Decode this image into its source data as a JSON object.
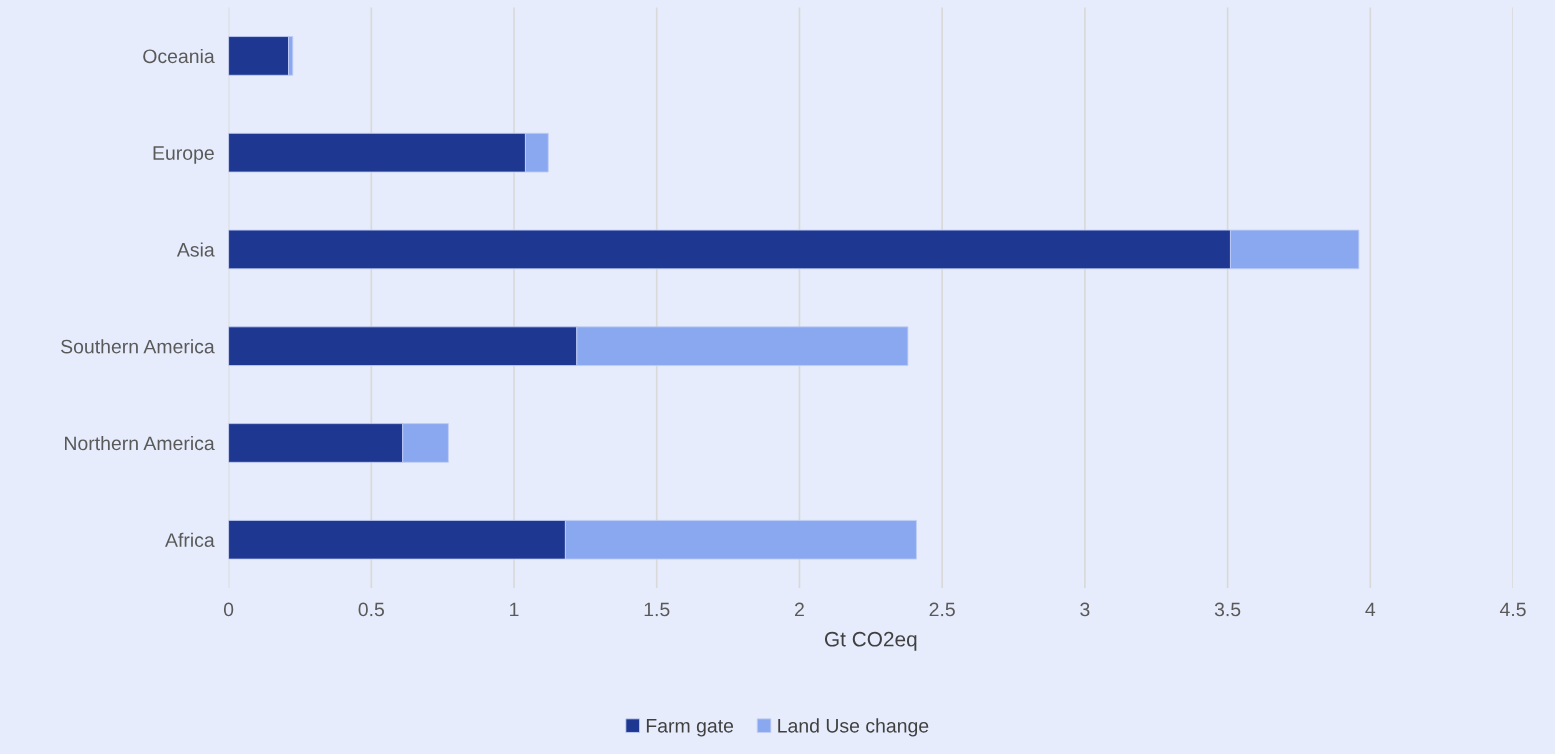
{
  "chart_data": {
    "type": "bar",
    "orientation": "horizontal",
    "stacked": true,
    "xlabel": "Gt CO2eq",
    "categories": [
      "Oceania",
      "Europe",
      "Asia",
      "Southern America",
      "Northern America",
      "Africa"
    ],
    "series": [
      {
        "name": "Farm gate",
        "color": "#1e3791",
        "values": [
          0.21,
          1.04,
          3.51,
          1.22,
          0.61,
          1.18
        ]
      },
      {
        "name": "Land Use change",
        "color": "#8aa8f0",
        "values": [
          0.015,
          0.08,
          0.45,
          1.16,
          0.16,
          1.23
        ]
      }
    ],
    "xlim": [
      0,
      4.5
    ],
    "xticks": [
      0,
      0.5,
      1,
      1.5,
      2,
      2.5,
      3,
      3.5,
      4,
      4.5
    ],
    "grid": "x",
    "legend": "bottom"
  }
}
